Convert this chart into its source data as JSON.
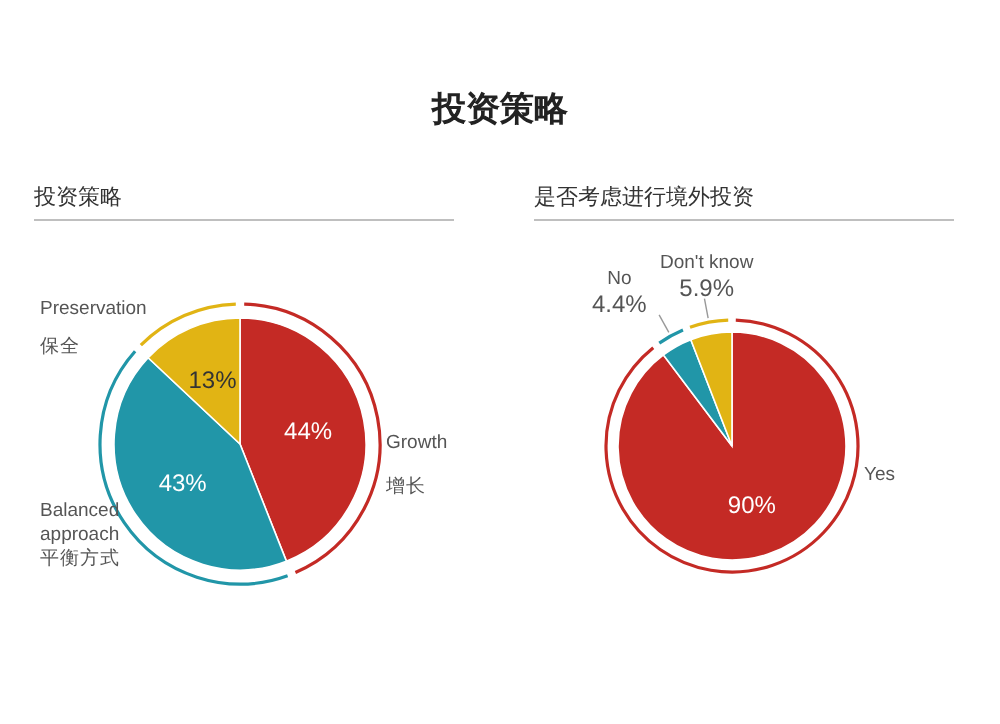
{
  "chart_data": [
    {
      "type": "other",
      "title": "投资策略"
    },
    {
      "type": "pie",
      "title": "投资策略",
      "categories": [
        "Growth\n增长",
        "Balanced\napproach\n平衡方式",
        "Preservation\n保全"
      ],
      "values": [
        44,
        43,
        13
      ],
      "value_labels": [
        "44%",
        "43%",
        "13%"
      ],
      "colors": [
        "#c42a25",
        "#2196a8",
        "#e1b414"
      ]
    },
    {
      "type": "pie",
      "title": "是否考虑进行境外投资",
      "categories": [
        "Yes",
        "No",
        "Don't know"
      ],
      "values": [
        90,
        4.4,
        5.9
      ],
      "value_labels": [
        "90%",
        "4.4%",
        "5.9%"
      ],
      "colors": [
        "#c42a25",
        "#2196a8",
        "#e1b414"
      ]
    }
  ]
}
